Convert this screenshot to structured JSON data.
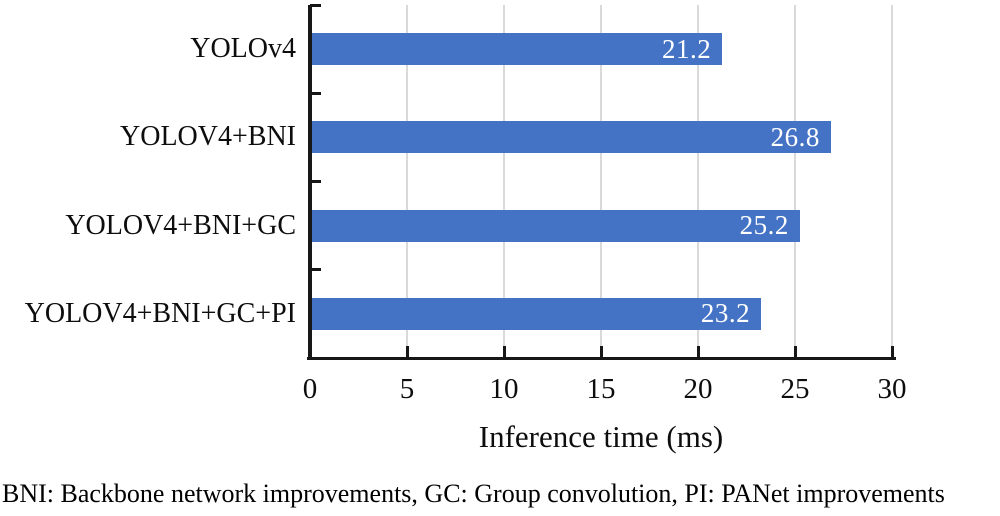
{
  "chart_data": {
    "type": "bar",
    "orientation": "horizontal",
    "categories": [
      "YOLOv4",
      "YOLOV4+BNI",
      "YOLOV4+BNI+GC",
      "YOLOV4+BNI+GC+PI"
    ],
    "values": [
      21.2,
      26.8,
      25.2,
      23.2
    ],
    "value_labels": [
      "21.2",
      "26.8",
      "25.2",
      "23.2"
    ],
    "title": "",
    "xlabel": "Inference time (ms)",
    "ylabel": "",
    "xlim": [
      0,
      30
    ],
    "xticks": [
      0,
      5,
      10,
      15,
      20,
      25,
      30
    ],
    "xtick_labels": [
      "0",
      "5",
      "10",
      "15",
      "20",
      "25",
      "30"
    ],
    "grid": "vertical-gridlines-at-xticks",
    "legend": "none",
    "colors": {
      "bar": "#4472C4",
      "gridline": "#D9D9D9",
      "axis": "#171717",
      "value_label": "#FFFFFF",
      "text": "#0D0D0D"
    }
  },
  "caption": "BNI: Backbone network improvements, GC: Group convolution, PI: PANet improvements"
}
